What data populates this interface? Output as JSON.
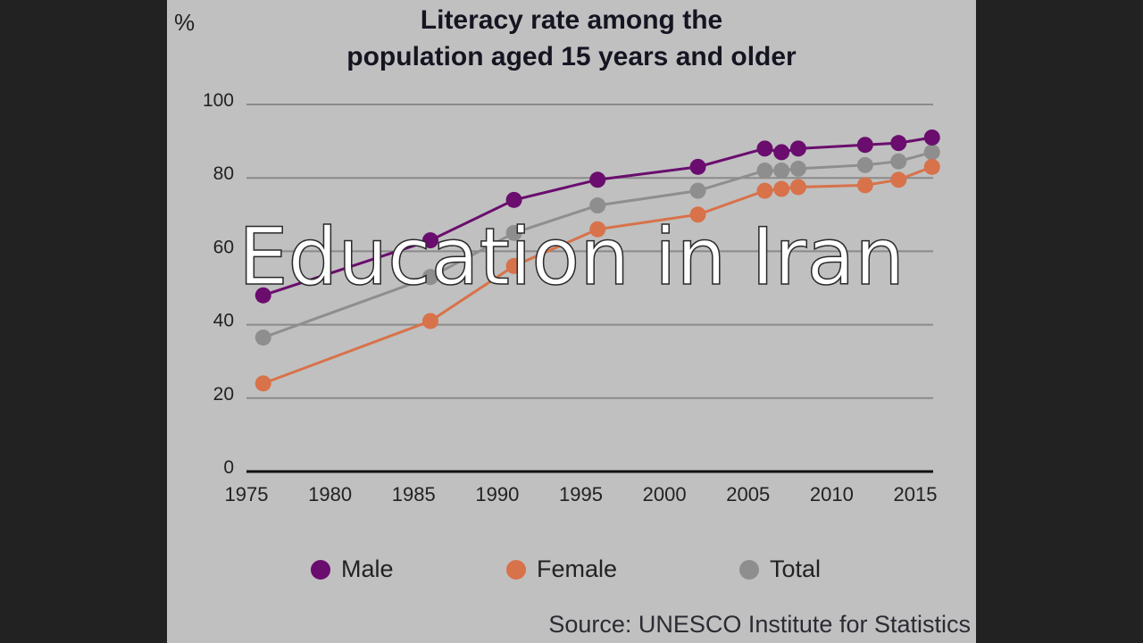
{
  "slide": {
    "title": "Education in Iran"
  },
  "chart_header": {
    "unit": "%",
    "title_line1": "Literacy rate among the",
    "title_line2": "population aged 15 years and older"
  },
  "legend": [
    {
      "label": "Male",
      "color": "#6a0d6e"
    },
    {
      "label": "Female",
      "color": "#d8724a"
    },
    {
      "label": "Total",
      "color": "#8e8e8e"
    }
  ],
  "source": "Source: UNESCO Institute for Statistics",
  "colors": {
    "background": "#222222",
    "panel": "#c0c0c0",
    "gridline": "#8a8a8a",
    "axis": "#111111"
  },
  "chart_data": {
    "type": "line",
    "title": "Literacy rate among the population aged 15 years and older",
    "xlabel": "",
    "ylabel": "%",
    "xlim": [
      1975,
      2015
    ],
    "ylim": [
      0,
      100
    ],
    "x_ticks": [
      "1975",
      "1980",
      "1985",
      "1990",
      "1995",
      "2000",
      "2005",
      "2010",
      "2015"
    ],
    "y_ticks": [
      "0",
      "20",
      "40",
      "60",
      "80",
      "100"
    ],
    "grid": true,
    "legend_position": "bottom",
    "x": [
      1976,
      1986,
      1991,
      1996,
      2002,
      2006,
      2007,
      2008,
      2012,
      2014,
      2016
    ],
    "series": [
      {
        "name": "Male",
        "color": "#6a0d6e",
        "values": [
          48,
          63,
          74,
          79.5,
          83,
          88,
          87,
          88,
          89,
          89.5,
          91
        ]
      },
      {
        "name": "Female",
        "color": "#d8724a",
        "values": [
          24,
          41,
          56,
          66,
          70,
          76.5,
          77,
          77.5,
          78,
          79.5,
          83
        ]
      },
      {
        "name": "Total",
        "color": "#8e8e8e",
        "values": [
          36.5,
          53,
          65,
          72.5,
          76.5,
          82,
          82,
          82.5,
          83.5,
          84.5,
          87
        ]
      }
    ],
    "source": "Source: UNESCO Institute for Statistics"
  }
}
